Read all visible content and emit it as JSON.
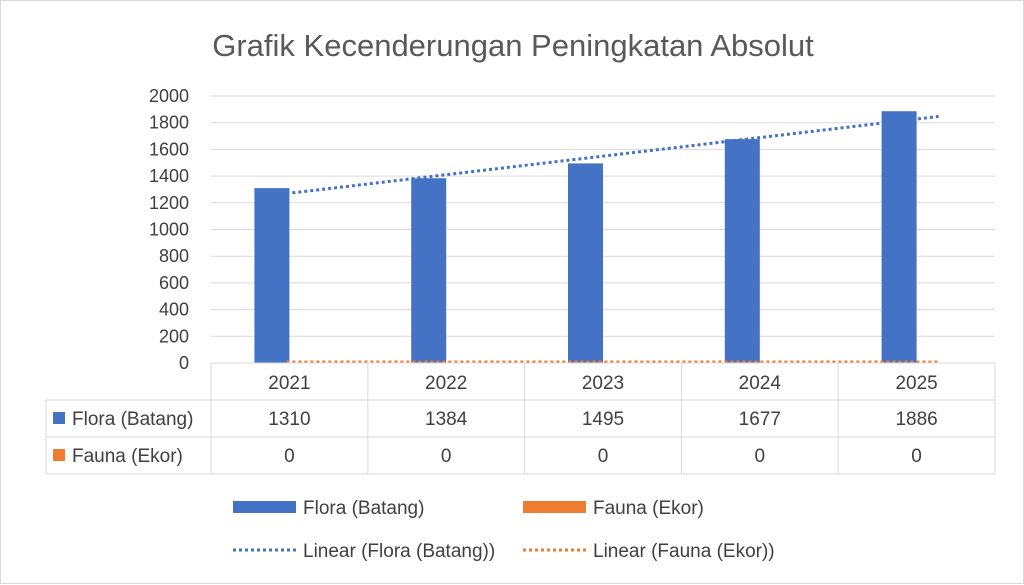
{
  "chart_data": {
    "type": "bar",
    "title": "Grafik Kecenderungan Peningkatan Absolut",
    "categories": [
      "2021",
      "2022",
      "2023",
      "2024",
      "2025"
    ],
    "ylim": [
      0,
      2000
    ],
    "yticks": [
      0,
      200,
      400,
      600,
      800,
      1000,
      1200,
      1400,
      1600,
      1800,
      2000
    ],
    "grid": true,
    "data_table": true,
    "legend_position": "bottom",
    "series": [
      {
        "name": "Flora (Batang)",
        "values": [
          1310,
          1384,
          1495,
          1677,
          1886
        ],
        "color": "#4472C4"
      },
      {
        "name": "Fauna (Ekor)",
        "values": [
          0,
          0,
          0,
          0,
          0
        ],
        "color": "#ED7D31"
      }
    ],
    "trendlines": [
      {
        "name": "Linear (Flora (Batang))",
        "series": 0,
        "type": "linear",
        "color": "#4472C4"
      },
      {
        "name": "Linear (Fauna (Ekor))",
        "series": 1,
        "type": "linear",
        "color": "#ED7D31"
      }
    ]
  }
}
